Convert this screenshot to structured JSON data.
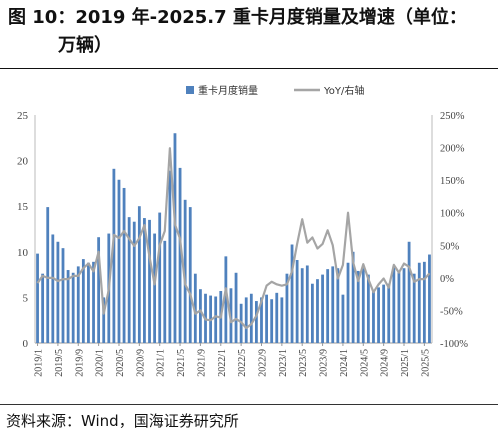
{
  "header": {
    "title_line1": "图 10：2019 年-2025.7 重卡月度销量及增速（单位：",
    "title_line2": "万辆）"
  },
  "footer": {
    "source": "资料来源：Wind，国海证券研究所"
  },
  "chart_data": {
    "type": "bar",
    "title": "",
    "xlabel": "",
    "ylabel": "",
    "ylim": [
      0,
      25
    ],
    "y2lim": [
      -100,
      250
    ],
    "yticks": [
      0,
      5,
      10,
      15,
      20,
      25
    ],
    "y2ticks": [
      "-100%",
      "-50%",
      "0%",
      "50%",
      "100%",
      "150%",
      "200%",
      "250%"
    ],
    "legend_position": "top-center",
    "x_tick_labels": [
      "2019/1",
      "2019/5",
      "2019/9",
      "2020/1",
      "2020/5",
      "2020/9",
      "2021/1",
      "2021/5",
      "2021/9",
      "2022/1",
      "2022/5",
      "2022/9",
      "2023/1",
      "2023/5",
      "2023/9",
      "2024/1",
      "2024/5",
      "2024/9",
      "2025/1",
      "2025/5"
    ],
    "series": [
      {
        "name": "重卡月度销量",
        "axis": "left",
        "kind": "bar",
        "color": "#4f81bd",
        "values": [
          9.8,
          7.6,
          14.9,
          11.9,
          11.1,
          10.4,
          8.0,
          7.7,
          8.4,
          9.2,
          8.8,
          8.9,
          11.6,
          5.0,
          12.0,
          19.1,
          17.9,
          17.0,
          13.8,
          13.3,
          15.0,
          13.7,
          13.5,
          12.0,
          14.3,
          11.2,
          18.9,
          23.0,
          19.2,
          15.7,
          14.9,
          7.6,
          5.9,
          5.4,
          5.2,
          5.1,
          5.7,
          9.5,
          6.0,
          7.7,
          4.3,
          5.0,
          5.4,
          4.6,
          5.0,
          5.3,
          4.8,
          5.5,
          5.0,
          7.6,
          10.8,
          9.1,
          8.2,
          8.5,
          6.5,
          7.0,
          7.5,
          8.1,
          8.4,
          8.2,
          5.3,
          8.8,
          10.0,
          7.9,
          8.2,
          7.5,
          5.7,
          6.1,
          6.4,
          6.5,
          8.4,
          7.9,
          8.2,
          11.1,
          7.6,
          8.8,
          8.9,
          9.7
        ]
      },
      {
        "name": "YoY/右轴",
        "axis": "right",
        "kind": "line",
        "color": "#a5a5a5",
        "values": [
          -8,
          3,
          0,
          0,
          -5,
          -2,
          -2,
          3,
          3,
          15,
          22,
          10,
          40,
          -55,
          -18,
          66,
          61,
          72,
          60,
          49,
          61,
          81,
          32,
          -10,
          50,
          72,
          199,
          82,
          60,
          -10,
          -25,
          -55,
          -50,
          -64,
          -65,
          -59,
          -61,
          -16,
          -68,
          -63,
          -68,
          -77,
          -71,
          -58,
          -36,
          -12,
          -6,
          -10,
          -12,
          -10,
          10,
          52,
          90,
          54,
          62,
          45,
          52,
          73,
          50,
          -1,
          20,
          100,
          24,
          -5,
          21,
          -2,
          -22,
          -10,
          -1,
          -15,
          20,
          8,
          22,
          17,
          -6,
          -2,
          -2,
          7
        ]
      }
    ]
  }
}
